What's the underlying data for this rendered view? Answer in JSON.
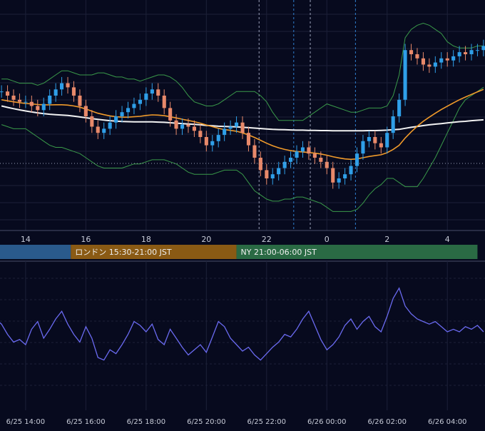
{
  "colors": {
    "background": "#070a1e",
    "grid": "#1c2038",
    "candle_up": "#2f9fe8",
    "candle_down": "#e8896a",
    "ma_fast": "#f09a2a",
    "ma_slow": "#f2f2f2",
    "bollinger": "#3a9a4a",
    "oscillator": "#6a6af0",
    "axis_text": "#c8ccd8",
    "session_tokyo": "#2a5a8c",
    "session_london": "#8a5a14",
    "session_ny": "#2a6a44"
  },
  "price_axis": {
    "tick_labels": [
      "14",
      "16",
      "18",
      "20",
      "22",
      "0",
      "2",
      "4"
    ],
    "tick_hours": [
      14,
      16,
      18,
      20,
      22,
      24,
      26,
      28
    ]
  },
  "sessions": [
    {
      "name": "Tokyo",
      "label": "",
      "start_hour": 12.6,
      "end_hour": 15.5
    },
    {
      "name": "London",
      "label": "ロンドン 15:30-21:00 JST",
      "start_hour": 15.5,
      "end_hour": 21.0
    },
    {
      "name": "NY",
      "label": "NY 21:00-06:00 JST",
      "start_hour": 21.0,
      "end_hour": 29.0
    }
  ],
  "oscillator_axis": {
    "tick_labels": [
      "6/25 14:00",
      "6/25 16:00",
      "6/25 18:00",
      "6/25 20:00",
      "6/25 22:00",
      "6/26 00:00",
      "6/26 02:00",
      "6/26 04:00"
    ],
    "tick_hours": [
      14,
      16,
      18,
      20,
      22,
      24,
      26,
      28
    ]
  },
  "chart_data": {
    "type": "line",
    "x_axis": {
      "kind": "hours since 6/25 00:00 JST",
      "min": 13.15,
      "max": 29.25
    },
    "price": {
      "min": 0,
      "max": 100,
      "note": "no price scale visible; values in relative units"
    },
    "candles": {
      "hours": [
        13.2,
        13.4,
        13.6,
        13.8,
        14.0,
        14.2,
        14.4,
        14.6,
        14.8,
        15.0,
        15.2,
        15.4,
        15.6,
        15.8,
        16.0,
        16.2,
        16.4,
        16.6,
        16.8,
        17.0,
        17.2,
        17.4,
        17.6,
        17.8,
        18.0,
        18.2,
        18.4,
        18.6,
        18.8,
        19.0,
        19.2,
        19.4,
        19.6,
        19.8,
        20.0,
        20.2,
        20.4,
        20.6,
        20.8,
        21.0,
        21.2,
        21.4,
        21.6,
        21.8,
        22.0,
        22.2,
        22.4,
        22.6,
        22.8,
        23.0,
        23.2,
        23.4,
        23.6,
        23.8,
        24.0,
        24.2,
        24.4,
        24.6,
        24.8,
        25.0,
        25.2,
        25.4,
        25.6,
        25.8,
        26.0,
        26.2,
        26.4,
        26.6,
        26.8,
        27.0,
        27.2,
        27.4,
        27.6,
        27.8,
        28.0,
        28.2,
        28.4,
        28.6,
        28.8,
        29.0,
        29.2
      ],
      "close": [
        62,
        60,
        58,
        57,
        57,
        55,
        53,
        56,
        60,
        63,
        66,
        64,
        60,
        55,
        50,
        45,
        42,
        44,
        47,
        50,
        52,
        54,
        56,
        58,
        61,
        63,
        60,
        54,
        48,
        44,
        46,
        45,
        43,
        40,
        36,
        38,
        41,
        44,
        45,
        47,
        42,
        36,
        30,
        24,
        20,
        22,
        25,
        28,
        30,
        33,
        35,
        32,
        30,
        28,
        25,
        18,
        20,
        22,
        26,
        32,
        38,
        40,
        37,
        35,
        42,
        50,
        58,
        82,
        80,
        78,
        75,
        74,
        76,
        78,
        77,
        79,
        81,
        80,
        82,
        82,
        84
      ]
    },
    "ma_fast_values": [
      58,
      57.5,
      57,
      56.6,
      56.2,
      56,
      55.7,
      55.6,
      55.5,
      55.6,
      55.6,
      55.4,
      55,
      54.4,
      53.5,
      52.5,
      51.5,
      50.8,
      50.2,
      49.8,
      49.6,
      49.6,
      49.8,
      50,
      50.4,
      50.7,
      50.6,
      50.3,
      49.8,
      49.2,
      48.6,
      48,
      47.4,
      46.7,
      45.8,
      45,
      44.2,
      43.6,
      43.2,
      42.8,
      42,
      41,
      39.8,
      38.4,
      37,
      35.8,
      34.8,
      34,
      33.4,
      33,
      32.8,
      32.5,
      32.2,
      31.8,
      31.2,
      30.5,
      29.9,
      29.4,
      29.2,
      29.4,
      30,
      30.6,
      31,
      31.4,
      32.4,
      34,
      36,
      39.5,
      42.5,
      45.2,
      47.6,
      49.6,
      51.5,
      53.3,
      54.9,
      56.5,
      58,
      59.3,
      60.6,
      61.8,
      63
    ],
    "ma_slow_values": [
      55,
      54.3,
      53.7,
      53.1,
      52.6,
      52.1,
      51.7,
      51.3,
      51,
      50.8,
      50.6,
      50.4,
      50.1,
      49.7,
      49.3,
      48.9,
      48.5,
      48.2,
      47.9,
      47.7,
      47.5,
      47.4,
      47.3,
      47.3,
      47.3,
      47.3,
      47.2,
      47.1,
      46.9,
      46.7,
      46.5,
      46.3,
      46.1,
      45.9,
      45.6,
      45.4,
      45.2,
      45.1,
      45,
      44.9,
      44.7,
      44.5,
      44.3,
      44.1,
      43.9,
      43.7,
      43.6,
      43.5,
      43.4,
      43.3,
      43.3,
      43.2,
      43.2,
      43.1,
      43.1,
      43,
      43,
      43,
      43,
      43,
      43,
      43.1,
      43.1,
      43.2,
      43.3,
      43.5,
      43.7,
      44.2,
      44.7,
      45.1,
      45.5,
      45.9,
      46.2,
      46.5,
      46.8,
      47.1,
      47.4,
      47.6,
      47.9,
      48.1,
      48.3
    ],
    "bollinger_upper": [
      68,
      68,
      67,
      66,
      66,
      66,
      65,
      66,
      68,
      70,
      72,
      72,
      71,
      70,
      70,
      70,
      71,
      71,
      70,
      69,
      69,
      68,
      68,
      67,
      68,
      69,
      70,
      70,
      69,
      67,
      64,
      60,
      57,
      56,
      55,
      55,
      56,
      58,
      60,
      62,
      62,
      62,
      62,
      60,
      57,
      52,
      48,
      48,
      48,
      48,
      48,
      50,
      52,
      54,
      56,
      55,
      54,
      53,
      52,
      52,
      53,
      54,
      54,
      54,
      55,
      60,
      70,
      88,
      92,
      94,
      95,
      94,
      92,
      90,
      86,
      84,
      83,
      83,
      83,
      84,
      84
    ],
    "bollinger_lower": [
      46,
      45,
      44,
      44,
      44,
      42,
      40,
      38,
      36,
      35,
      35,
      34,
      33,
      32,
      30,
      28,
      26,
      25,
      25,
      25,
      25,
      26,
      27,
      27,
      28,
      29,
      29,
      29,
      28,
      27,
      25,
      23,
      22,
      22,
      22,
      22,
      23,
      24,
      24,
      24,
      22,
      18,
      14,
      12,
      10,
      9,
      9,
      10,
      10,
      11,
      11,
      10,
      9,
      8,
      6,
      4,
      4,
      4,
      4,
      5,
      8,
      12,
      15,
      17,
      20,
      20,
      18,
      16,
      16,
      16,
      20,
      25,
      30,
      36,
      42,
      48,
      54,
      58,
      60,
      62,
      64
    ],
    "oscillator": {
      "min": 0,
      "max": 100,
      "hours": [
        13.0,
        13.2,
        13.4,
        13.6,
        13.8,
        14.0,
        14.2,
        14.4,
        14.6,
        14.8,
        15.0,
        15.2,
        15.4,
        15.6,
        15.8,
        16.0,
        16.2,
        16.4,
        16.6,
        16.8,
        17.0,
        17.2,
        17.4,
        17.6,
        17.8,
        18.0,
        18.2,
        18.4,
        18.6,
        18.8,
        19.0,
        19.2,
        19.4,
        19.6,
        19.8,
        20.0,
        20.2,
        20.4,
        20.6,
        20.8,
        21.0,
        21.2,
        21.4,
        21.6,
        21.8,
        22.0,
        22.2,
        22.4,
        22.6,
        22.8,
        23.0,
        23.2,
        23.4,
        23.6,
        23.8,
        24.0,
        24.2,
        24.4,
        24.6,
        24.8,
        25.0,
        25.2,
        25.4,
        25.6,
        25.8,
        26.0,
        26.2,
        26.4,
        26.6,
        26.8,
        27.0,
        27.2,
        27.4,
        27.6,
        27.8,
        28.0,
        28.2,
        28.4,
        28.6,
        28.8,
        29.0,
        29.2
      ],
      "values": [
        60,
        56,
        48,
        42,
        44,
        40,
        52,
        58,
        45,
        52,
        60,
        66,
        56,
        48,
        42,
        54,
        45,
        30,
        28,
        36,
        33,
        40,
        48,
        58,
        55,
        50,
        56,
        44,
        40,
        52,
        45,
        38,
        32,
        36,
        40,
        34,
        46,
        58,
        54,
        45,
        40,
        35,
        38,
        32,
        28,
        33,
        38,
        42,
        48,
        46,
        52,
        60,
        66,
        55,
        44,
        36,
        40,
        46,
        55,
        60,
        52,
        58,
        62,
        54,
        50,
        62,
        76,
        84,
        70,
        64,
        60,
        58,
        56,
        58,
        54,
        50,
        52,
        50,
        54,
        52,
        55,
        50
      ]
    }
  }
}
